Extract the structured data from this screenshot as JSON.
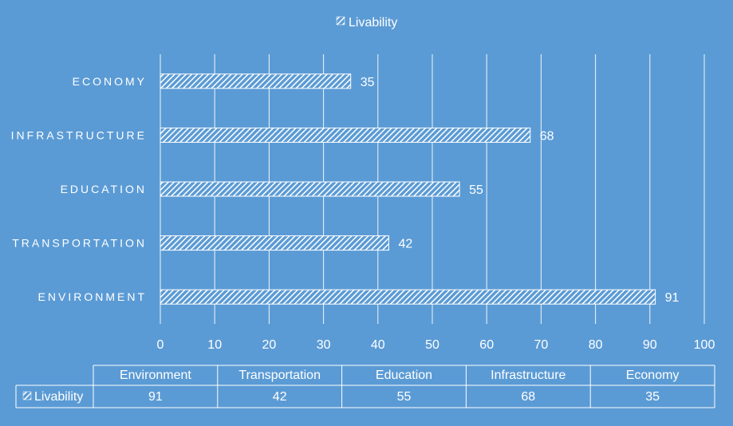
{
  "chart_data": {
    "type": "bar",
    "orientation": "horizontal",
    "categories": [
      "Environment",
      "Transportation",
      "Education",
      "Infrastructure",
      "Economy"
    ],
    "series": [
      {
        "name": "Livability",
        "values": [
          91,
          42,
          55,
          68,
          35
        ]
      }
    ],
    "xlim": [
      0,
      100
    ],
    "xticks": [
      "0",
      "10",
      "20",
      "30",
      "40",
      "50",
      "60",
      "70",
      "80",
      "90",
      "100"
    ],
    "grid": "vertical",
    "legend": "top",
    "bar_fill": "hatched-white",
    "data_table": true
  },
  "colors": {
    "background": "#5b9bd5",
    "foreground": "#ffffff"
  }
}
